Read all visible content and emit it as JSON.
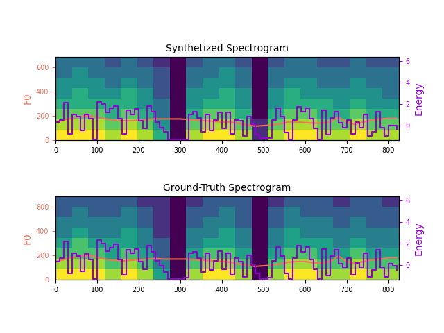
{
  "chart_data": [
    {
      "type": "spectrogram",
      "title": "Synthetized Spectrogram",
      "xlim": [
        0,
        825
      ],
      "xticks": [
        0,
        100,
        200,
        300,
        400,
        500,
        600,
        700,
        800
      ],
      "ylim": [
        0,
        685
      ],
      "yticks": [
        0,
        200,
        400,
        600
      ],
      "y2lim": [
        -1.4,
        6.4
      ],
      "y2ticks": [
        0,
        2,
        4,
        6
      ],
      "spectrogram": [
        [
          9,
          9,
          9,
          8,
          9,
          8,
          6,
          1,
          8,
          9,
          9,
          8,
          2,
          8,
          9,
          9,
          8,
          8,
          9,
          8,
          8
        ],
        [
          8,
          8,
          8,
          7,
          8,
          7,
          5,
          1,
          7,
          8,
          8,
          7,
          2,
          7,
          8,
          8,
          7,
          7,
          8,
          7,
          7
        ],
        [
          7,
          7,
          7,
          6,
          7,
          6,
          4,
          1,
          6,
          7,
          7,
          6,
          1,
          6,
          7,
          7,
          6,
          6,
          7,
          6,
          6
        ],
        [
          6,
          6,
          6,
          6,
          6,
          5,
          4,
          1,
          5,
          6,
          6,
          5,
          1,
          5,
          6,
          6,
          6,
          5,
          6,
          5,
          5
        ],
        [
          5,
          6,
          5,
          5,
          6,
          5,
          3,
          1,
          5,
          5,
          6,
          5,
          1,
          5,
          6,
          5,
          5,
          5,
          5,
          5,
          4
        ],
        [
          5,
          5,
          5,
          4,
          5,
          4,
          3,
          1,
          4,
          5,
          5,
          4,
          1,
          4,
          5,
          5,
          4,
          4,
          5,
          4,
          4
        ],
        [
          4,
          5,
          4,
          4,
          4,
          4,
          3,
          1,
          4,
          4,
          5,
          4,
          1,
          4,
          4,
          4,
          4,
          4,
          4,
          4,
          4
        ],
        [
          4,
          4,
          4,
          3,
          4,
          3,
          2,
          1,
          3,
          4,
          4,
          3,
          1,
          3,
          4,
          4,
          3,
          3,
          4,
          3,
          3
        ]
      ],
      "series": [
        {
          "name": "F0",
          "color": "#f4725a",
          "line_style": "solid",
          "x": [
            0,
            20,
            40,
            60,
            80,
            100,
            120,
            140,
            160,
            180,
            200,
            220,
            240,
            260,
            280,
            300,
            320,
            340,
            360,
            380,
            400,
            420,
            440,
            460,
            480,
            500,
            520,
            540,
            560,
            580,
            600,
            620,
            640,
            660,
            680,
            700,
            720,
            740,
            760,
            780,
            800,
            820
          ],
          "values": [
            150,
            165,
            180,
            195,
            200,
            190,
            175,
            165,
            160,
            160,
            165,
            170,
            175,
            175,
            175,
            175,
            170,
            165,
            160,
            155,
            150,
            150,
            140,
            125,
            115,
            120,
            125,
            135,
            150,
            150,
            145,
            140,
            140,
            150,
            190,
            150,
            130,
            150,
            165,
            175,
            180,
            180
          ]
        },
        {
          "name": "Energy",
          "color": "#9400d3",
          "axis": "y2",
          "line_style": "steps",
          "x": [
            0,
            10,
            20,
            30,
            40,
            50,
            60,
            70,
            80,
            90,
            100,
            110,
            120,
            130,
            140,
            150,
            160,
            170,
            180,
            190,
            200,
            210,
            220,
            230,
            240,
            250,
            260,
            270,
            280,
            290,
            300,
            310,
            320,
            330,
            340,
            350,
            360,
            370,
            380,
            390,
            400,
            410,
            420,
            430,
            440,
            450,
            460,
            470,
            480,
            490,
            500,
            510,
            520,
            530,
            540,
            550,
            560,
            570,
            580,
            590,
            600,
            610,
            620,
            630,
            640,
            650,
            660,
            670,
            680,
            690,
            700,
            710,
            720,
            730,
            740,
            750,
            760,
            770,
            780,
            790,
            800,
            810,
            820
          ],
          "values": [
            0.3,
            0.5,
            2.1,
            -0.8,
            1.0,
            0.8,
            -0.5,
            1.0,
            0.6,
            -1.3,
            2.2,
            2.0,
            1.2,
            1.6,
            1.8,
            0.6,
            -0.8,
            1.4,
            1.0,
            1.5,
            0.4,
            -0.3,
            1.8,
            1.3,
            0.3,
            -0.2,
            -0.6,
            -1.3,
            -1.3,
            -1.3,
            -1.3,
            -1.3,
            1.0,
            1.3,
            0.7,
            -0.6,
            1.0,
            -0.5,
            0.5,
            1.2,
            -0.3,
            1.2,
            -0.8,
            0.5,
            0.4,
            -1.0,
            0.8,
            0.1,
            -0.9,
            -1.2,
            -1.2,
            -1.2,
            0.5,
            1.6,
            0.8,
            -0.7,
            -1.3,
            0.5,
            1.7,
            1.3,
            1.6,
            0.6,
            -0.3,
            -1.3,
            1.4,
            -0.9,
            0.7,
            1.3,
            0.2,
            -0.2,
            0.5,
            -0.8,
            0.3,
            -0.2,
            1.0,
            -1.0,
            -0.6,
            1.3,
            -0.2,
            -1.0,
            0.0,
            0.0,
            -0.4
          ]
        }
      ]
    },
    {
      "type": "spectrogram",
      "title": "Ground-Truth Spectrogram",
      "xlim": [
        0,
        825
      ],
      "xticks": [
        0,
        100,
        200,
        300,
        400,
        500,
        600,
        700,
        800
      ],
      "ylim": [
        0,
        685
      ],
      "yticks": [
        0,
        200,
        400,
        600
      ],
      "y2lim": [
        -1.4,
        6.4
      ],
      "y2ticks": [
        0,
        2,
        4,
        6
      ],
      "spectrogram": [
        [
          9,
          9,
          9,
          8,
          9,
          8,
          6,
          2,
          8,
          9,
          9,
          8,
          2,
          8,
          9,
          9,
          8,
          8,
          9,
          8,
          8
        ],
        [
          8,
          8,
          8,
          7,
          8,
          7,
          5,
          2,
          7,
          8,
          8,
          7,
          2,
          7,
          8,
          8,
          7,
          7,
          8,
          7,
          7
        ],
        [
          7,
          7,
          7,
          6,
          7,
          6,
          4,
          2,
          6,
          7,
          7,
          6,
          2,
          6,
          7,
          7,
          6,
          6,
          7,
          6,
          6
        ],
        [
          6,
          7,
          6,
          6,
          6,
          5,
          4,
          2,
          5,
          6,
          6,
          5,
          2,
          5,
          6,
          6,
          6,
          5,
          6,
          5,
          5
        ],
        [
          5,
          6,
          5,
          5,
          6,
          5,
          3,
          2,
          5,
          5,
          6,
          5,
          2,
          5,
          6,
          5,
          5,
          5,
          5,
          5,
          5
        ],
        [
          5,
          5,
          5,
          5,
          5,
          4,
          3,
          2,
          4,
          5,
          5,
          4,
          2,
          4,
          5,
          5,
          5,
          4,
          5,
          4,
          4
        ],
        [
          4,
          5,
          4,
          4,
          5,
          4,
          3,
          2,
          4,
          4,
          5,
          4,
          2,
          4,
          5,
          4,
          4,
          4,
          4,
          4,
          4
        ],
        [
          4,
          4,
          4,
          4,
          4,
          3,
          3,
          2,
          3,
          4,
          4,
          4,
          2,
          3,
          4,
          4,
          4,
          3,
          4,
          4,
          3
        ]
      ],
      "series": [
        {
          "name": "F0",
          "color": "#f4725a",
          "line_style": "solid",
          "x": [
            0,
            20,
            40,
            60,
            80,
            100,
            120,
            140,
            160,
            180,
            200,
            220,
            240,
            260,
            280,
            300,
            320,
            340,
            360,
            380,
            400,
            420,
            440,
            460,
            480,
            500,
            520,
            540,
            560,
            580,
            600,
            620,
            640,
            660,
            680,
            700,
            720,
            740,
            760,
            780,
            800,
            820
          ],
          "values": [
            150,
            165,
            185,
            195,
            200,
            185,
            170,
            160,
            155,
            160,
            165,
            170,
            175,
            170,
            170,
            170,
            170,
            165,
            160,
            155,
            150,
            145,
            130,
            120,
            110,
            115,
            120,
            130,
            145,
            150,
            150,
            140,
            140,
            150,
            195,
            150,
            135,
            150,
            165,
            170,
            180,
            180
          ]
        },
        {
          "name": "Energy",
          "color": "#9400d3",
          "axis": "y2",
          "line_style": "steps",
          "x": [
            0,
            10,
            20,
            30,
            40,
            50,
            60,
            70,
            80,
            90,
            100,
            110,
            120,
            130,
            140,
            150,
            160,
            170,
            180,
            190,
            200,
            210,
            220,
            230,
            240,
            250,
            260,
            270,
            280,
            290,
            300,
            310,
            320,
            330,
            340,
            350,
            360,
            370,
            380,
            390,
            400,
            410,
            420,
            430,
            440,
            450,
            460,
            470,
            480,
            490,
            500,
            510,
            520,
            530,
            540,
            550,
            560,
            570,
            580,
            590,
            600,
            610,
            620,
            630,
            640,
            650,
            660,
            670,
            680,
            690,
            700,
            710,
            720,
            730,
            740,
            750,
            760,
            770,
            780,
            790,
            800,
            810,
            820
          ],
          "values": [
            0.3,
            0.6,
            2.2,
            -0.8,
            1.1,
            0.8,
            -0.6,
            1.0,
            0.5,
            -1.3,
            2.3,
            2.0,
            1.3,
            1.6,
            1.9,
            0.5,
            -0.9,
            1.4,
            1.1,
            1.5,
            0.3,
            -0.4,
            1.8,
            1.2,
            0.4,
            -0.1,
            -0.7,
            -1.3,
            -1.3,
            -1.3,
            -1.3,
            -1.2,
            1.1,
            1.2,
            0.6,
            -0.7,
            1.1,
            -0.5,
            0.4,
            1.3,
            -0.4,
            1.1,
            -0.9,
            0.6,
            0.3,
            -1.1,
            0.9,
            0.0,
            -0.8,
            -1.3,
            -1.3,
            -1.2,
            0.4,
            1.7,
            0.8,
            -0.8,
            -1.3,
            0.6,
            1.8,
            1.2,
            1.7,
            0.5,
            -0.4,
            -1.3,
            1.5,
            -1.0,
            0.8,
            1.4,
            0.1,
            -0.3,
            0.6,
            -0.9,
            0.2,
            -0.3,
            1.1,
            -1.1,
            -0.5,
            1.4,
            -0.3,
            -1.1,
            0.1,
            -0.1,
            -0.5
          ]
        }
      ]
    }
  ]
}
